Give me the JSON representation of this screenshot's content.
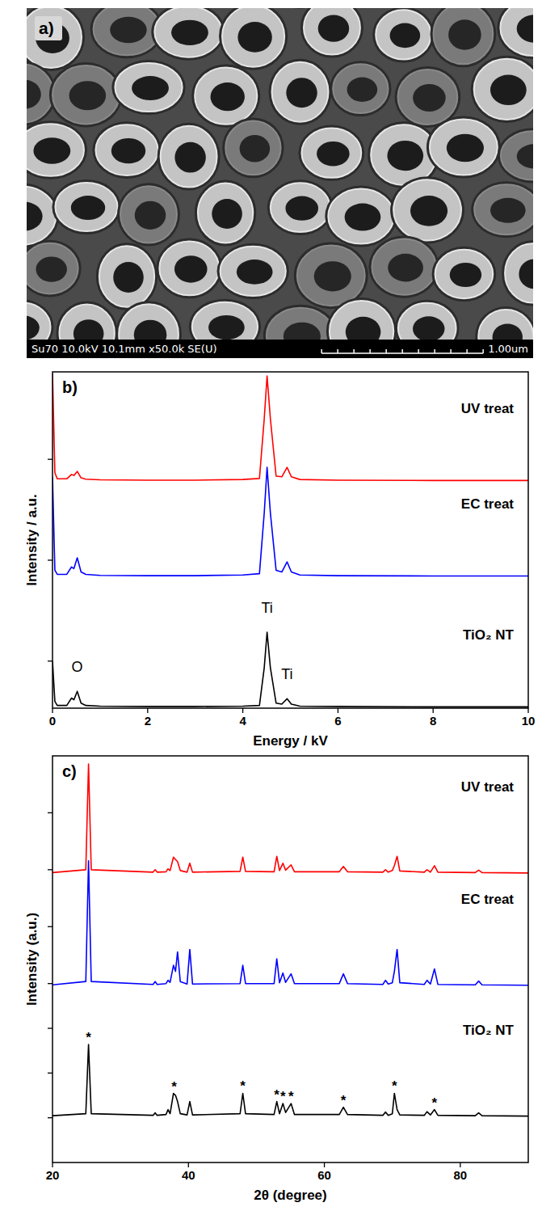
{
  "chart_data": [
    {
      "type": "image",
      "label": "a)",
      "info_text": "Su70 10.0kV 10.1mm x50.0k SE(U)",
      "scale_label": "1.00um"
    },
    {
      "type": "line",
      "label": "b)",
      "x_label": "Energy / kV",
      "y_label": "Intensity / a.u.",
      "x": [
        0,
        0.05,
        0.1,
        0.3,
        0.4,
        0.45,
        0.52,
        0.6,
        0.7,
        1.0,
        2.0,
        3.0,
        4.0,
        4.35,
        4.45,
        4.51,
        4.58,
        4.7,
        4.82,
        4.93,
        5.02,
        5.2,
        6,
        8,
        10
      ],
      "series": [
        {
          "name": "UV treat",
          "color": "#ff0000",
          "values": [
            99.5,
            70,
            68.2,
            68.2,
            69.5,
            69.2,
            70.4,
            68.5,
            68.1,
            67.9,
            67.8,
            67.8,
            68,
            68.3,
            86,
            98.8,
            86,
            69,
            68.8,
            71.6,
            68.8,
            68,
            67.8,
            67.7,
            67.7
          ]
        },
        {
          "name": "EC treat",
          "color": "#0000ff",
          "values": [
            68.8,
            41,
            39.8,
            39.8,
            42,
            41.5,
            44.7,
            40.5,
            39.8,
            39.5,
            39.4,
            39.4,
            39.6,
            40,
            58,
            71.6,
            58,
            41,
            40.5,
            43.5,
            40.5,
            39.6,
            39.4,
            39.3,
            39.3
          ]
        },
        {
          "name": "TiO₂ NT",
          "color": "#000000",
          "values": [
            14,
            2,
            0.8,
            0.8,
            3,
            2.5,
            5,
            1.5,
            0.8,
            0.6,
            0.5,
            0.5,
            0.6,
            0.8,
            12,
            22.6,
            12,
            1.5,
            1.2,
            2.8,
            1.2,
            0.6,
            0.5,
            0.4,
            0.4
          ]
        }
      ],
      "xlim": [
        0,
        10
      ],
      "xticks": [
        0,
        2,
        4,
        6,
        8,
        10
      ],
      "ylim": [
        0,
        100
      ],
      "yticks": [
        14,
        44,
        74
      ],
      "tick_labels": "x",
      "annotations": [
        {
          "text": "O",
          "x": 0.52
        },
        {
          "text": "Ti",
          "x": 4.51
        },
        {
          "text": "Ti",
          "x": 4.93
        }
      ]
    },
    {
      "type": "line",
      "label": "c)",
      "x_label": "2θ (degree)",
      "y_label": "Intensity (a.u.)",
      "x": [
        20,
        24.9,
        25.3,
        25.7,
        34.8,
        35.1,
        35.4,
        36.7,
        37.0,
        37.3,
        37.8,
        38.1,
        38.4,
        38.8,
        39.8,
        40.2,
        40.6,
        47.6,
        48.0,
        48.4,
        52.6,
        53.0,
        53.4,
        53.9,
        54.3,
        55.1,
        55.6,
        62.2,
        62.8,
        63.4,
        68.6,
        69.0,
        69.4,
        70.0,
        70.3,
        70.7,
        71.1,
        74.7,
        75.1,
        75.6,
        76.2,
        76.7,
        82.2,
        82.7,
        83.2,
        90
      ],
      "series": [
        {
          "name": "UV treat",
          "color": "#ff0000",
          "values": [
            71.3,
            72,
            98,
            72,
            71.4,
            72,
            71.4,
            71.5,
            72.2,
            71.8,
            75.1,
            74.5,
            74,
            71.8,
            71.4,
            73.6,
            71.4,
            71.6,
            75.1,
            71.6,
            71.5,
            75.3,
            71.8,
            73.6,
            71.9,
            73.2,
            71.5,
            71.5,
            72.8,
            71.5,
            71.4,
            72,
            71.4,
            71.8,
            73,
            75.3,
            71.7,
            71.4,
            72,
            71.4,
            73,
            71.4,
            71.3,
            71.9,
            71.3,
            71.2
          ]
        },
        {
          "name": "EC treat",
          "color": "#0000ff",
          "values": [
            43.7,
            44.5,
            74.2,
            44.5,
            43.8,
            44.5,
            43.8,
            44,
            44.8,
            44.3,
            48.5,
            47,
            51.8,
            44.5,
            43.9,
            52.4,
            43.9,
            44,
            48.5,
            44,
            44,
            50.1,
            44.2,
            46.6,
            44.3,
            46.4,
            44,
            44,
            46.4,
            44,
            43.8,
            44.8,
            43.9,
            44.2,
            47,
            52.4,
            44.2,
            43.8,
            44.8,
            43.9,
            47.6,
            43.8,
            43.7,
            44.6,
            43.7,
            43.6
          ]
        },
        {
          "name": "TiO₂ NT",
          "color": "#000000",
          "values": [
            11.5,
            12,
            29,
            12,
            11.6,
            12.2,
            11.6,
            11.8,
            13,
            12,
            17,
            16.5,
            15,
            12,
            11.7,
            15,
            11.7,
            12,
            17,
            12,
            11.8,
            15,
            12,
            14.5,
            12.3,
            14.5,
            11.8,
            11.8,
            13.6,
            11.8,
            11.6,
            12.4,
            11.6,
            12,
            17,
            13,
            11.7,
            11.6,
            12.5,
            11.7,
            13,
            11.6,
            11.5,
            12.2,
            11.5,
            11.4
          ]
        }
      ],
      "xlim": [
        20,
        90
      ],
      "xticks": [
        20,
        40,
        60,
        80
      ],
      "ylim": [
        0,
        100
      ],
      "yticks": [
        11,
        22,
        33,
        44,
        58,
        72,
        86
      ],
      "tick_labels": "x",
      "peak_markers": {
        "label": "*",
        "x": [
          25.3,
          37.9,
          48.0,
          53.0,
          53.9,
          55.1,
          62.8,
          70.3,
          76.2
        ]
      }
    }
  ]
}
